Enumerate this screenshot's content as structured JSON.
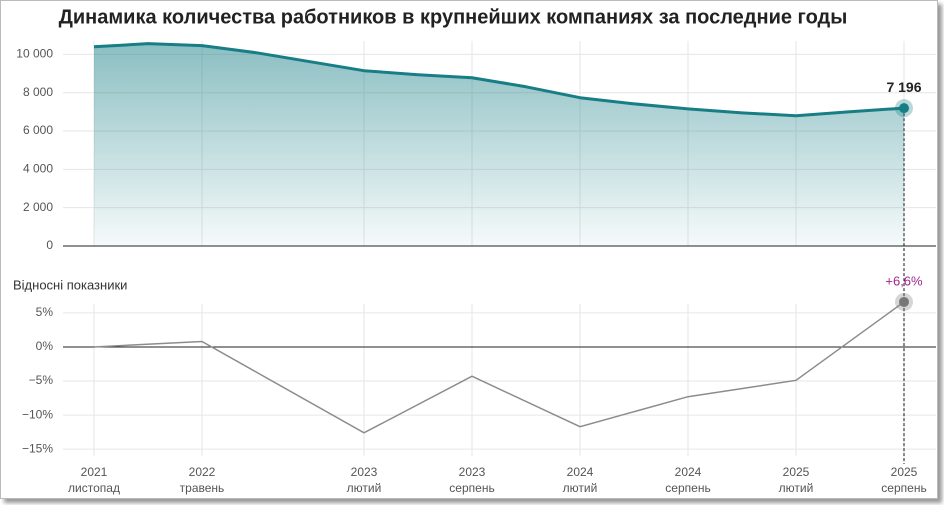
{
  "chart_data": [
    {
      "type": "area",
      "title": "Динамика количества работников в крупнейших компаниях за последние годы",
      "x": [
        "2021-11",
        "2022-02",
        "2022-05",
        "2022-08",
        "2022-11",
        "2023-02",
        "2023-05",
        "2023-08",
        "2023-11",
        "2024-02",
        "2024-05",
        "2024-08",
        "2024-11",
        "2025-02",
        "2025-05",
        "2025-08"
      ],
      "values": [
        10400,
        10560,
        10460,
        10090,
        9620,
        9150,
        8940,
        8780,
        8310,
        7740,
        7420,
        7160,
        6950,
        6800,
        7010,
        7196
      ],
      "value_labels": [
        null,
        null,
        null,
        null,
        null,
        null,
        null,
        null,
        null,
        null,
        null,
        null,
        null,
        null,
        null,
        "7 196"
      ],
      "color": "#177e86",
      "ylim": [
        0,
        10700
      ],
      "yticks": [
        0,
        {
          "value": 2000,
          "label": "2 000"
        },
        {
          "value": 4000,
          "label": "4 000"
        },
        {
          "value": 6000,
          "label": "6 000"
        },
        {
          "value": 8000,
          "label": "8 000"
        },
        {
          "value": 10000,
          "label": "10 000"
        }
      ],
      "grid": true
    },
    {
      "type": "line",
      "title": "Відносні показники",
      "x": [
        "2021-11",
        "2022-05",
        "2023-02",
        "2023-08",
        "2024-02",
        "2024-08",
        "2025-02",
        "2025-08"
      ],
      "values": [
        0,
        0.8,
        -12.6,
        -4.3,
        -11.7,
        -7.3,
        -4.9,
        6.6
      ],
      "value_labels": [
        null,
        null,
        null,
        null,
        null,
        null,
        null,
        "+6,6%"
      ],
      "color": "#8c8c8c",
      "label_color": "#a0288e",
      "ylim": [
        -16,
        6.3
      ],
      "yticks": [
        {
          "value": 5,
          "label": "5%"
        },
        {
          "value": 0,
          "label": "0%"
        },
        {
          "value": -5,
          "label": "−5%"
        },
        {
          "value": -10,
          "label": "−10%"
        },
        {
          "value": -15,
          "label": "−15%"
        }
      ],
      "xticks": [
        {
          "value": "2021-11",
          "label": [
            "2021",
            "листопад"
          ]
        },
        {
          "value": "2022-05",
          "label": [
            "2022",
            "травень"
          ]
        },
        {
          "value": "2023-02",
          "label": [
            "2023",
            "лютий"
          ]
        },
        {
          "value": "2023-08",
          "label": [
            "2023",
            "серпень"
          ]
        },
        {
          "value": "2024-02",
          "label": [
            "2024",
            "лютий"
          ]
        },
        {
          "value": "2024-08",
          "label": [
            "2024",
            "серпень"
          ]
        },
        {
          "value": "2025-02",
          "label": [
            "2025",
            "лютий"
          ]
        },
        {
          "value": "2025-08",
          "label": [
            "2025",
            "серпень"
          ]
        }
      ],
      "grid": true
    }
  ]
}
